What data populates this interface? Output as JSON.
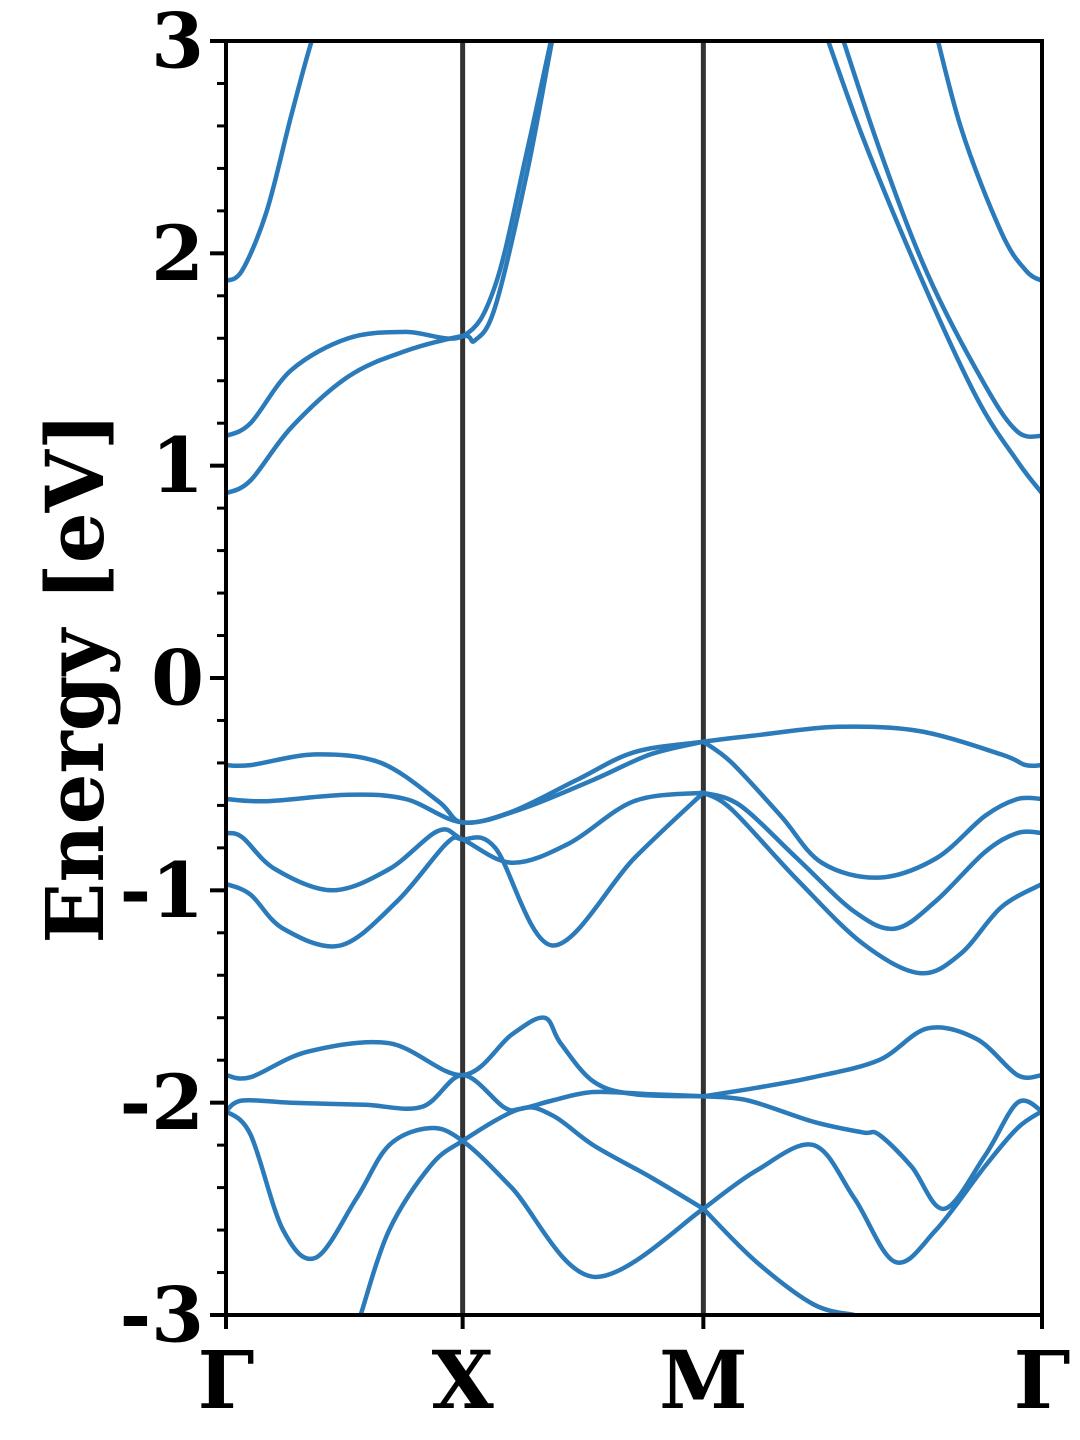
{
  "chart_data": {
    "type": "line",
    "title": "",
    "xlabel": "",
    "ylabel": "Energy [eV]",
    "ylim": [
      -3,
      3
    ],
    "xlim": [
      0,
      1
    ],
    "grid": false,
    "legend": "none",
    "line_color": "#2b7bba",
    "kpath_line_color": "#333333",
    "high_symmetry_points": [
      {
        "label": "Γ",
        "x": 0.0
      },
      {
        "label": "X",
        "x": 0.29
      },
      {
        "label": "M",
        "x": 0.585
      },
      {
        "label": "Γ",
        "x": 1.0
      }
    ],
    "yticks": [
      {
        "label": "3",
        "value": 3
      },
      {
        "label": "2",
        "value": 2
      },
      {
        "label": "1",
        "value": 1
      },
      {
        "label": "0",
        "value": 0
      },
      {
        "label": "-1",
        "value": -1
      },
      {
        "label": "-2",
        "value": -2
      },
      {
        "label": "-3",
        "value": -3
      }
    ],
    "series": [
      {
        "x": [
          0,
          0.02,
          0.05,
          0.08,
          0.105,
          0.125
        ],
        "y": [
          1.87,
          1.92,
          2.2,
          2.65,
          3.0,
          3.2
        ]
      },
      {
        "x": [
          0,
          0.03,
          0.08,
          0.15,
          0.22,
          0.29,
          0.33,
          0.37,
          0.41,
          0.44
        ],
        "y": [
          1.14,
          1.2,
          1.45,
          1.6,
          1.63,
          1.61,
          1.85,
          2.5,
          3.2,
          3.6
        ]
      },
      {
        "x": [
          0,
          0.03,
          0.08,
          0.15,
          0.22,
          0.29,
          0.305,
          0.33,
          0.37,
          0.41,
          0.44
        ],
        "y": [
          0.87,
          0.93,
          1.18,
          1.42,
          1.54,
          1.61,
          1.59,
          1.75,
          2.4,
          3.2,
          3.6
        ]
      },
      {
        "x": [
          0.72,
          0.78,
          0.85,
          0.92,
          0.97,
          1.0
        ],
        "y": [
          3.2,
          2.55,
          1.9,
          1.32,
          1.02,
          0.87
        ]
      },
      {
        "x": [
          0.74,
          0.8,
          0.86,
          0.93,
          0.97,
          1.0
        ],
        "y": [
          3.2,
          2.5,
          1.9,
          1.38,
          1.16,
          1.14
        ]
      },
      {
        "x": [
          0.86,
          0.9,
          0.95,
          0.98,
          1.0
        ],
        "y": [
          3.2,
          2.6,
          2.1,
          1.92,
          1.87
        ]
      },
      {
        "x": [
          0,
          0.03,
          0.11,
          0.19,
          0.26,
          0.29,
          0.35,
          0.43,
          0.5,
          0.585,
          0.65,
          0.75,
          0.85,
          0.95,
          0.98,
          1.0
        ],
        "y": [
          -0.41,
          -0.41,
          -0.36,
          -0.4,
          -0.58,
          -0.68,
          -0.63,
          -0.48,
          -0.35,
          -0.3,
          -0.27,
          -0.23,
          -0.25,
          -0.36,
          -0.41,
          -0.41
        ]
      },
      {
        "x": [
          0,
          0.05,
          0.15,
          0.22,
          0.29,
          0.36,
          0.45,
          0.52,
          0.585
        ],
        "y": [
          -0.57,
          -0.58,
          -0.55,
          -0.57,
          -0.68,
          -0.62,
          -0.48,
          -0.36,
          -0.3
        ]
      },
      {
        "x": [
          0.585,
          0.62,
          0.68,
          0.73,
          0.8,
          0.87,
          0.93,
          0.97,
          1.0
        ],
        "y": [
          -0.3,
          -0.4,
          -0.65,
          -0.87,
          -0.94,
          -0.85,
          -0.65,
          -0.57,
          -0.57
        ]
      },
      {
        "x": [
          0,
          0.02,
          0.06,
          0.13,
          0.2,
          0.26,
          0.29,
          0.35,
          0.42,
          0.5,
          0.585
        ],
        "y": [
          -0.73,
          -0.75,
          -0.9,
          -1.0,
          -0.9,
          -0.72,
          -0.76,
          -0.87,
          -0.78,
          -0.58,
          -0.54
        ]
      },
      {
        "x": [
          0,
          0.03,
          0.07,
          0.14,
          0.21,
          0.27,
          0.29,
          0.33,
          0.4,
          0.5,
          0.585
        ],
        "y": [
          -0.97,
          -1.02,
          -1.18,
          -1.26,
          -1.05,
          -0.78,
          -0.76,
          -0.8,
          -1.26,
          -0.85,
          -0.54
        ]
      },
      {
        "x": [
          0.585,
          0.63,
          0.7,
          0.77,
          0.82,
          0.87,
          0.93,
          0.97,
          1.0
        ],
        "y": [
          -0.54,
          -0.6,
          -0.85,
          -1.1,
          -1.18,
          -1.05,
          -0.82,
          -0.73,
          -0.73
        ]
      },
      {
        "x": [
          0.585,
          0.62,
          0.7,
          0.78,
          0.85,
          0.9,
          0.95,
          1.0
        ],
        "y": [
          -0.54,
          -0.62,
          -0.95,
          -1.25,
          -1.39,
          -1.3,
          -1.08,
          -0.97
        ]
      },
      {
        "x": [
          0,
          0.03,
          0.1,
          0.2,
          0.29,
          0.35,
          0.39,
          0.41,
          0.45,
          0.5,
          0.585
        ],
        "y": [
          -1.87,
          -1.88,
          -1.76,
          -1.72,
          -1.87,
          -1.68,
          -1.6,
          -1.72,
          -1.9,
          -1.96,
          -1.97
        ]
      },
      {
        "x": [
          0.585,
          0.65,
          0.72,
          0.8,
          0.86,
          0.92,
          0.97,
          1.0
        ],
        "y": [
          -1.97,
          -1.93,
          -1.88,
          -1.8,
          -1.65,
          -1.7,
          -1.87,
          -1.87
        ]
      },
      {
        "x": [
          0,
          0.02,
          0.08,
          0.17,
          0.24,
          0.29,
          0.34,
          0.36,
          0.4,
          0.45,
          0.52,
          0.585
        ],
        "y": [
          -2.04,
          -1.99,
          -2.0,
          -2.01,
          -2.02,
          -1.87,
          -2.02,
          -2.03,
          -1.99,
          -1.95,
          -1.96,
          -1.97
        ]
      },
      {
        "x": [
          0.585,
          0.64,
          0.72,
          0.78,
          0.8,
          0.84,
          0.88,
          0.93,
          0.97,
          1.0
        ],
        "y": [
          -1.97,
          -1.99,
          -2.09,
          -2.14,
          -2.15,
          -2.3,
          -2.5,
          -2.25,
          -2.0,
          -2.04
        ]
      },
      {
        "x": [
          0,
          0.03,
          0.07,
          0.11,
          0.16,
          0.2,
          0.25,
          0.29,
          0.35,
          0.45,
          0.585
        ],
        "y": [
          -2.04,
          -2.15,
          -2.6,
          -2.73,
          -2.45,
          -2.2,
          -2.12,
          -2.18,
          -2.4,
          -2.82,
          -2.5
        ]
      },
      {
        "x": [
          0.585,
          0.65,
          0.72,
          0.77,
          0.82,
          0.87,
          0.93,
          0.97,
          1.0
        ],
        "y": [
          -2.5,
          -2.32,
          -2.2,
          -2.45,
          -2.75,
          -2.6,
          -2.3,
          -2.12,
          -2.04
        ]
      },
      {
        "x": [
          0.165,
          0.2,
          0.25,
          0.29,
          0.36,
          0.4,
          0.45,
          0.52,
          0.585
        ],
        "y": [
          -3.0,
          -2.6,
          -2.3,
          -2.18,
          -2.03,
          -2.06,
          -2.2,
          -2.35,
          -2.5
        ]
      },
      {
        "x": [
          0.585,
          0.65,
          0.72,
          0.77
        ],
        "y": [
          -2.5,
          -2.75,
          -2.95,
          -3.0
        ]
      }
    ]
  }
}
